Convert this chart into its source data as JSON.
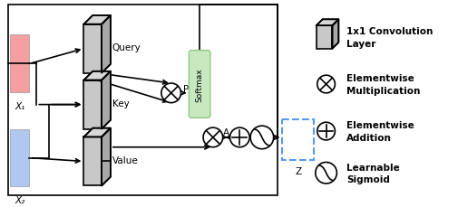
{
  "fig_width": 5.06,
  "fig_height": 2.3,
  "dpi": 100,
  "bg_color": "#ffffff",
  "label_x1": "X₁",
  "label_x2": "X₂",
  "label_P": "P",
  "label_A": "A",
  "label_Z": "Z",
  "softmax_label": "Softmax",
  "conv_color": "#c8c8c8",
  "conv_top_color": "#d8d8d8",
  "conv_side_color": "#a8a8a8",
  "x1_color": "#f4a0a0",
  "x2_color": "#b0c8f0",
  "softmax_color": "#c8e8c0",
  "softmax_edge_color": "#90c880",
  "dashed_color": "#5599ee"
}
